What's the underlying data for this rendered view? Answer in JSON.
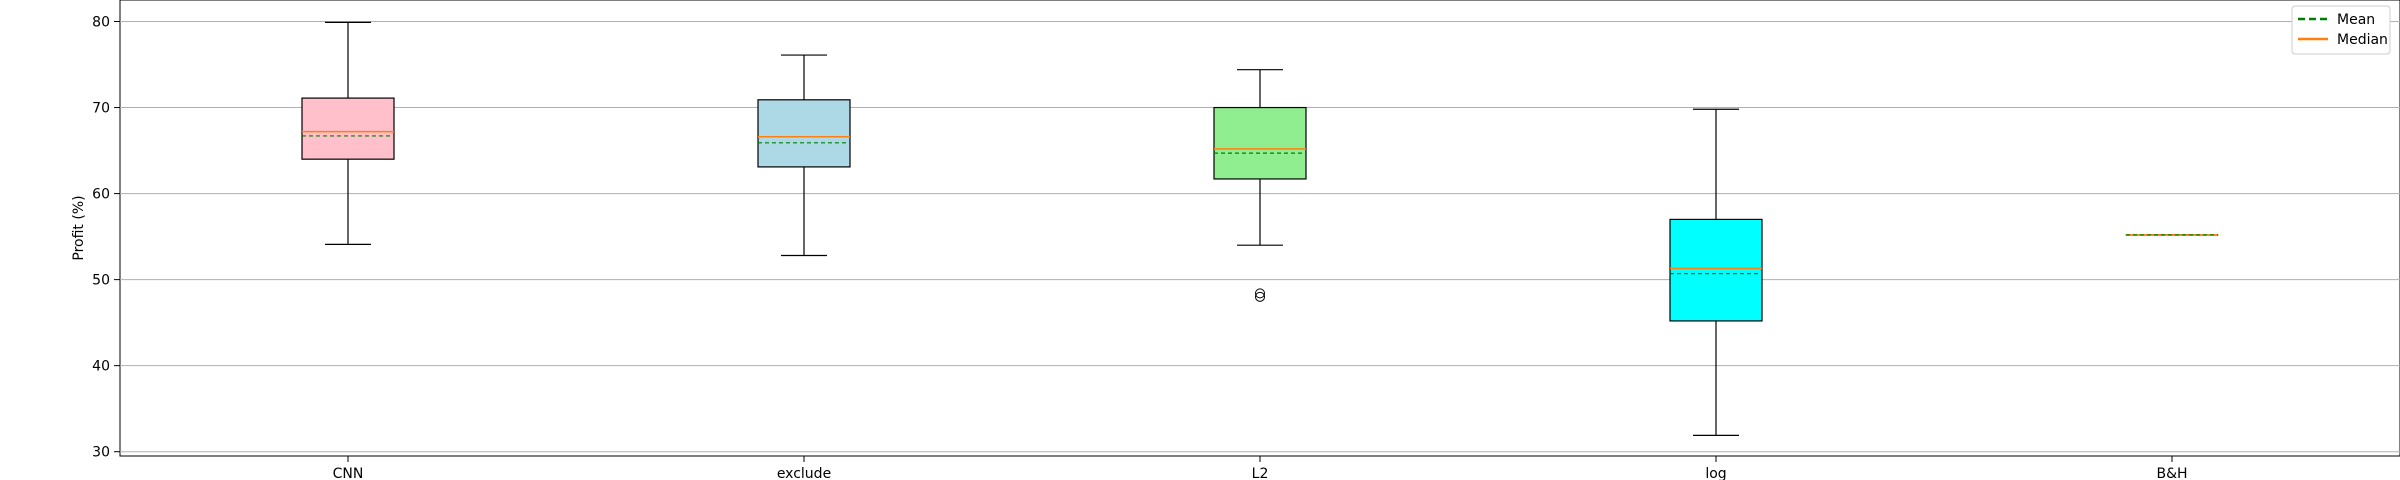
{
  "chart_data": {
    "type": "boxplot",
    "title": "",
    "xlabel": "",
    "ylabel": "Profit (%)",
    "ylim": [
      29.5,
      82.5
    ],
    "yticks": [
      30,
      40,
      50,
      60,
      70,
      80
    ],
    "grid": "horizontal",
    "legend": {
      "position": "top-right",
      "entries": [
        {
          "label": "Mean",
          "style": "dashed",
          "color": "#008000"
        },
        {
          "label": "Median",
          "style": "solid",
          "color": "#ff7f0e"
        }
      ]
    },
    "categories": [
      "CNN",
      "exclude",
      "L2",
      "log",
      "B&H"
    ],
    "boxes": [
      {
        "name": "CNN",
        "whisker_low": 54.1,
        "q1": 64.0,
        "median": 67.2,
        "mean": 66.7,
        "q3": 71.1,
        "whisker_high": 79.9,
        "outliers": [],
        "color": "#ffc0cb"
      },
      {
        "name": "exclude",
        "whisker_low": 52.8,
        "q1": 63.1,
        "median": 66.6,
        "mean": 65.9,
        "q3": 70.9,
        "whisker_high": 76.1,
        "outliers": [],
        "color": "#add8e6"
      },
      {
        "name": "L2",
        "whisker_low": 54.0,
        "q1": 61.7,
        "median": 65.2,
        "mean": 64.7,
        "q3": 70.0,
        "whisker_high": 74.4,
        "outliers": [
          48.4,
          48.0
        ],
        "color": "#90ee90"
      },
      {
        "name": "log",
        "whisker_low": 31.9,
        "q1": 45.2,
        "median": 51.3,
        "mean": 50.7,
        "q3": 57.0,
        "whisker_high": 69.8,
        "outliers": [],
        "color": "#00ffff"
      },
      {
        "name": "B&H",
        "whisker_low": 55.2,
        "q1": 55.2,
        "median": 55.2,
        "mean": 55.2,
        "q3": 55.2,
        "whisker_high": 55.2,
        "outliers": [],
        "color": "#9acd32"
      }
    ]
  }
}
